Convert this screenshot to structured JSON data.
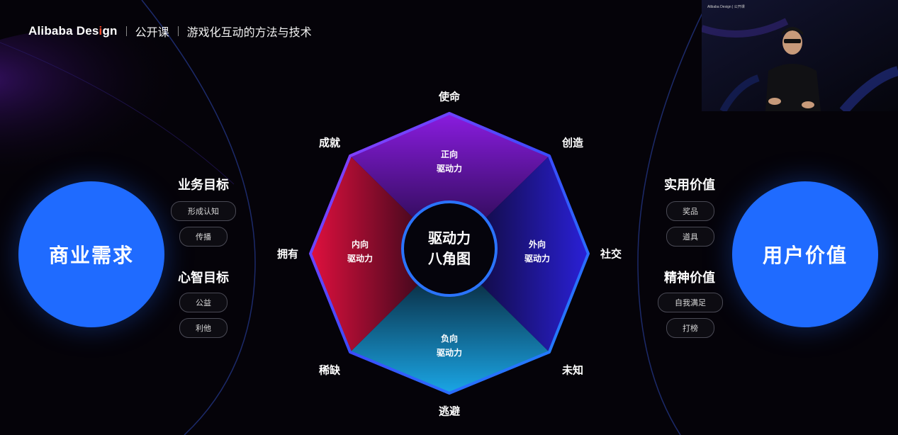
{
  "header": {
    "brand_prefix": "Alibaba Des",
    "brand_accent": "i",
    "brand_suffix": "gn",
    "course": "公开课",
    "topic": "游戏化互动的方法与技术"
  },
  "left": {
    "circle_label": "商业需求",
    "groups": [
      {
        "title": "业务目标",
        "items": [
          "形成认知",
          "传播"
        ]
      },
      {
        "title": "心智目标",
        "items": [
          "公益",
          "利他"
        ]
      }
    ]
  },
  "right": {
    "circle_label": "用户价值",
    "groups": [
      {
        "title": "实用价值",
        "items": [
          "奖品",
          "道具"
        ]
      },
      {
        "title": "精神价值",
        "items": [
          "自我满足",
          "打榜"
        ]
      }
    ]
  },
  "octagon": {
    "center": [
      "驱动力",
      "八角图"
    ],
    "vertices": {
      "top": "使命",
      "top_right": "创造",
      "right": "社交",
      "bottom_right": "未知",
      "bottom": "逃避",
      "bottom_left": "稀缺",
      "left": "拥有",
      "top_left": "成就"
    },
    "regions": {
      "top": [
        "正向",
        "驱动力"
      ],
      "right": [
        "外向",
        "驱动力"
      ],
      "bottom": [
        "负向",
        "驱动力"
      ],
      "left": [
        "内向",
        "驱动力"
      ]
    }
  },
  "camera": {
    "brand": "Alibaba Design | 公开课"
  },
  "colors": {
    "accent_blue": "#1f6bff",
    "accent_red": "#ff4a2a"
  }
}
